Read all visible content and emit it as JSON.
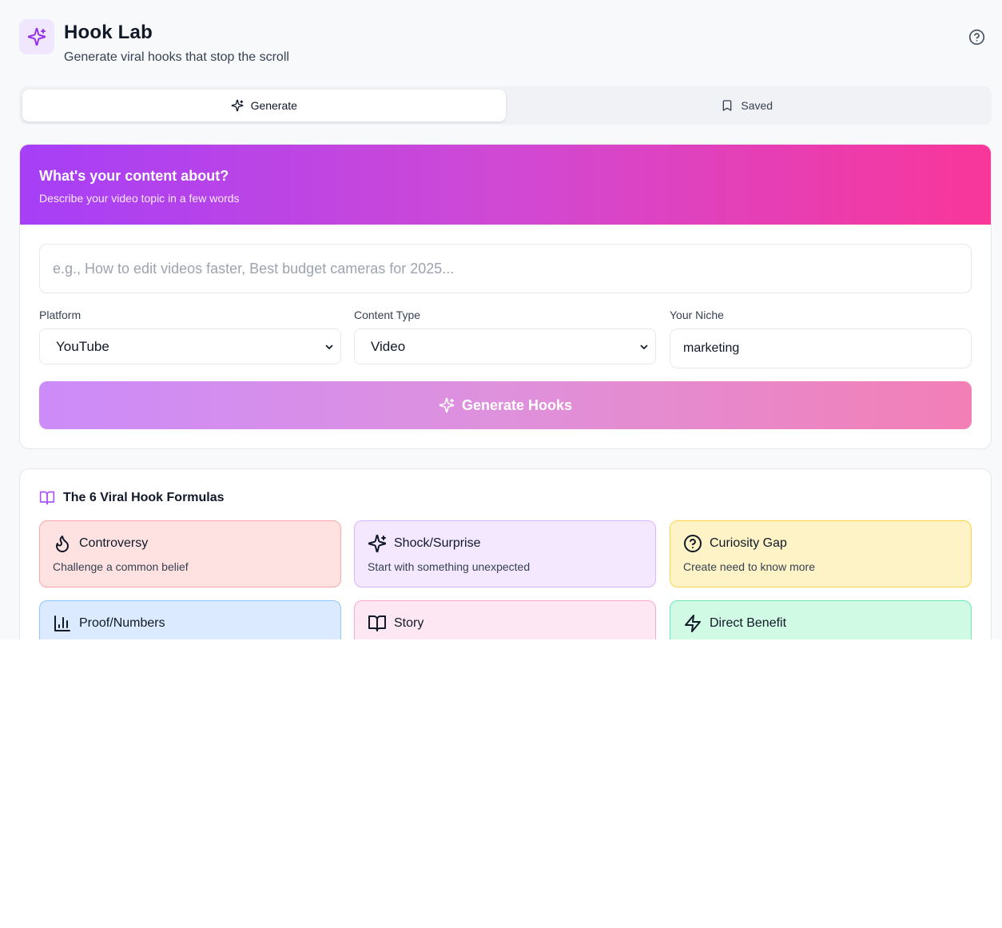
{
  "header": {
    "title": "Hook Lab",
    "subtitle": "Generate viral hooks that stop the scroll",
    "logo_icon": "sparkles-icon",
    "help_icon": "help-circle-icon"
  },
  "tabs": [
    {
      "label": "Generate",
      "icon": "sparkles-icon",
      "active": true
    },
    {
      "label": "Saved",
      "icon": "bookmark-icon",
      "active": false
    }
  ],
  "generator": {
    "title": "What's your content about?",
    "subtitle": "Describe your video topic in a few words",
    "topic_placeholder": "e.g., How to edit videos faster, Best budget cameras for 2025...",
    "topic_value": "",
    "platform_label": "Platform",
    "platform_value": "YouTube",
    "content_type_label": "Content Type",
    "content_type_value": "Video",
    "niche_label": "Your Niche",
    "niche_value": "marketing",
    "button_label": "Generate Hooks",
    "gradient_colors": [
      "#a63ff7",
      "#f9369a"
    ]
  },
  "formulas": {
    "title": "The 6 Viral Hook Formulas",
    "icon": "book-open-icon",
    "items": [
      {
        "name": "Controversy",
        "description": "Challenge a common belief",
        "icon": "flame-icon",
        "bg": "#fee2e2",
        "border": "#fca5a5"
      },
      {
        "name": "Shock/Surprise",
        "description": "Start with something unexpected",
        "icon": "sparkles-icon",
        "bg": "#f3e8ff",
        "border": "#d8b4fe"
      },
      {
        "name": "Curiosity Gap",
        "description": "Create need to know more",
        "icon": "help-circle-icon",
        "bg": "#fef3c7",
        "border": "#fcd34d"
      },
      {
        "name": "Proof/Numbers",
        "description": "",
        "icon": "bar-chart-icon",
        "bg": "#dbeafe",
        "border": "#93c5fd"
      },
      {
        "name": "Story",
        "description": "",
        "icon": "book-open-icon",
        "bg": "#fce7f3",
        "border": "#f9a8d4"
      },
      {
        "name": "Direct Benefit",
        "description": "",
        "icon": "zap-icon",
        "bg": "#d1fae5",
        "border": "#6ee7b7"
      }
    ]
  }
}
